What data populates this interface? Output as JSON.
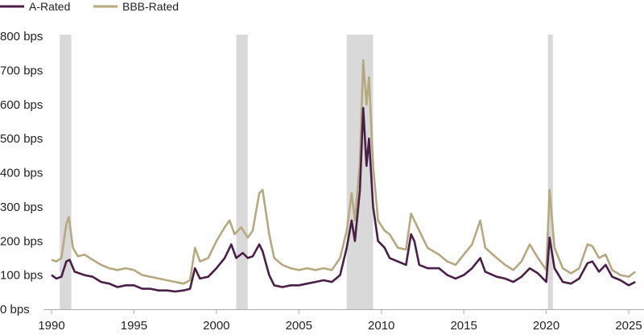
{
  "chart_data": {
    "type": "line",
    "title": "",
    "xlabel": "",
    "ylabel": "",
    "xlim": [
      1990,
      2025.8
    ],
    "ylim": [
      0,
      800
    ],
    "x_ticks": [
      1990,
      1995,
      2000,
      2005,
      2010,
      2015,
      2020,
      2025
    ],
    "x_tick_labels": [
      "1990",
      "1995",
      "2000",
      "2005",
      "2010",
      "2015",
      "2020",
      "2025"
    ],
    "y_ticks": [
      0,
      100,
      200,
      300,
      400,
      500,
      600,
      700,
      800
    ],
    "y_tick_labels": [
      "0 bps",
      "100 bps",
      "200 bps",
      "300 bps",
      "400 bps",
      "500 bps",
      "600 bps",
      "700 bps",
      "800 bps"
    ],
    "grid": false,
    "legend_position": "top-left",
    "recession_bands": [
      [
        1990.5,
        1991.2
      ],
      [
        2001.2,
        2001.9
      ],
      [
        2007.9,
        2009.5
      ],
      [
        2020.1,
        2020.4
      ]
    ],
    "band_color": "#d9d9d9",
    "series": [
      {
        "name": "A-Rated",
        "color": "#4a1f47",
        "points": [
          [
            1990.0,
            100
          ],
          [
            1990.3,
            90
          ],
          [
            1990.6,
            95
          ],
          [
            1990.9,
            140
          ],
          [
            1991.1,
            145
          ],
          [
            1991.4,
            110
          ],
          [
            1992,
            100
          ],
          [
            1992.5,
            95
          ],
          [
            1993,
            80
          ],
          [
            1993.5,
            75
          ],
          [
            1994,
            65
          ],
          [
            1994.5,
            70
          ],
          [
            1995,
            70
          ],
          [
            1995.5,
            60
          ],
          [
            1996,
            60
          ],
          [
            1996.5,
            55
          ],
          [
            1997,
            55
          ],
          [
            1997.5,
            52
          ],
          [
            1998,
            55
          ],
          [
            1998.4,
            60
          ],
          [
            1998.7,
            120
          ],
          [
            1999,
            90
          ],
          [
            1999.5,
            95
          ],
          [
            2000,
            120
          ],
          [
            2000.5,
            150
          ],
          [
            2000.9,
            190
          ],
          [
            2001.2,
            150
          ],
          [
            2001.6,
            165
          ],
          [
            2001.9,
            150
          ],
          [
            2002.2,
            155
          ],
          [
            2002.6,
            190
          ],
          [
            2002.8,
            170
          ],
          [
            2003.2,
            100
          ],
          [
            2003.5,
            70
          ],
          [
            2004,
            65
          ],
          [
            2004.5,
            70
          ],
          [
            2005,
            70
          ],
          [
            2005.5,
            75
          ],
          [
            2006,
            80
          ],
          [
            2006.5,
            85
          ],
          [
            2007,
            80
          ],
          [
            2007.5,
            100
          ],
          [
            2007.9,
            180
          ],
          [
            2008.2,
            260
          ],
          [
            2008.4,
            200
          ],
          [
            2008.7,
            350
          ],
          [
            2008.9,
            590
          ],
          [
            2009.1,
            420
          ],
          [
            2009.25,
            500
          ],
          [
            2009.5,
            300
          ],
          [
            2009.8,
            200
          ],
          [
            2010.2,
            180
          ],
          [
            2010.5,
            150
          ],
          [
            2011,
            140
          ],
          [
            2011.5,
            130
          ],
          [
            2011.8,
            220
          ],
          [
            2012,
            200
          ],
          [
            2012.3,
            130
          ],
          [
            2012.8,
            120
          ],
          [
            2013.5,
            120
          ],
          [
            2014,
            100
          ],
          [
            2014.5,
            90
          ],
          [
            2015,
            100
          ],
          [
            2015.5,
            120
          ],
          [
            2016,
            150
          ],
          [
            2016.3,
            110
          ],
          [
            2017,
            95
          ],
          [
            2017.5,
            90
          ],
          [
            2018,
            80
          ],
          [
            2018.5,
            95
          ],
          [
            2019,
            120
          ],
          [
            2019.5,
            105
          ],
          [
            2020,
            80
          ],
          [
            2020.2,
            210
          ],
          [
            2020.5,
            120
          ],
          [
            2021,
            80
          ],
          [
            2021.5,
            75
          ],
          [
            2022,
            90
          ],
          [
            2022.5,
            135
          ],
          [
            2022.8,
            140
          ],
          [
            2023.2,
            110
          ],
          [
            2023.6,
            130
          ],
          [
            2024,
            95
          ],
          [
            2024.5,
            85
          ],
          [
            2025,
            70
          ],
          [
            2025.4,
            80
          ]
        ]
      },
      {
        "name": "BBB-Rated",
        "color": "#b5a97f",
        "points": [
          [
            1990.0,
            145
          ],
          [
            1990.3,
            140
          ],
          [
            1990.6,
            150
          ],
          [
            1990.9,
            250
          ],
          [
            1991.05,
            270
          ],
          [
            1991.3,
            180
          ],
          [
            1991.6,
            155
          ],
          [
            1992,
            160
          ],
          [
            1992.5,
            145
          ],
          [
            1993,
            130
          ],
          [
            1993.5,
            120
          ],
          [
            1994,
            115
          ],
          [
            1994.5,
            120
          ],
          [
            1995,
            115
          ],
          [
            1995.5,
            100
          ],
          [
            1996,
            95
          ],
          [
            1996.5,
            90
          ],
          [
            1997,
            85
          ],
          [
            1997.5,
            80
          ],
          [
            1998,
            75
          ],
          [
            1998.4,
            85
          ],
          [
            1998.7,
            180
          ],
          [
            1999,
            140
          ],
          [
            1999.5,
            150
          ],
          [
            2000,
            200
          ],
          [
            2000.5,
            240
          ],
          [
            2000.8,
            260
          ],
          [
            2001.1,
            220
          ],
          [
            2001.5,
            240
          ],
          [
            2001.9,
            210
          ],
          [
            2002.2,
            230
          ],
          [
            2002.6,
            340
          ],
          [
            2002.8,
            350
          ],
          [
            2003.2,
            220
          ],
          [
            2003.5,
            150
          ],
          [
            2004,
            130
          ],
          [
            2004.5,
            120
          ],
          [
            2005,
            115
          ],
          [
            2005.5,
            120
          ],
          [
            2006,
            115
          ],
          [
            2006.5,
            120
          ],
          [
            2007,
            115
          ],
          [
            2007.5,
            150
          ],
          [
            2007.9,
            230
          ],
          [
            2008.2,
            340
          ],
          [
            2008.4,
            260
          ],
          [
            2008.7,
            430
          ],
          [
            2008.9,
            730
          ],
          [
            2009.1,
            600
          ],
          [
            2009.25,
            680
          ],
          [
            2009.5,
            420
          ],
          [
            2009.8,
            260
          ],
          [
            2010.2,
            230
          ],
          [
            2010.5,
            220
          ],
          [
            2011,
            180
          ],
          [
            2011.5,
            175
          ],
          [
            2011.8,
            280
          ],
          [
            2012,
            260
          ],
          [
            2012.3,
            230
          ],
          [
            2012.8,
            180
          ],
          [
            2013.5,
            160
          ],
          [
            2014,
            140
          ],
          [
            2014.5,
            130
          ],
          [
            2015,
            160
          ],
          [
            2015.5,
            190
          ],
          [
            2016,
            260
          ],
          [
            2016.3,
            180
          ],
          [
            2017,
            150
          ],
          [
            2017.5,
            130
          ],
          [
            2018,
            115
          ],
          [
            2018.5,
            140
          ],
          [
            2019,
            190
          ],
          [
            2019.5,
            150
          ],
          [
            2020,
            115
          ],
          [
            2020.2,
            350
          ],
          [
            2020.5,
            180
          ],
          [
            2021,
            120
          ],
          [
            2021.5,
            105
          ],
          [
            2022,
            120
          ],
          [
            2022.5,
            190
          ],
          [
            2022.8,
            185
          ],
          [
            2023.2,
            150
          ],
          [
            2023.6,
            160
          ],
          [
            2024,
            115
          ],
          [
            2024.5,
            100
          ],
          [
            2025,
            95
          ],
          [
            2025.4,
            110
          ]
        ]
      }
    ]
  }
}
